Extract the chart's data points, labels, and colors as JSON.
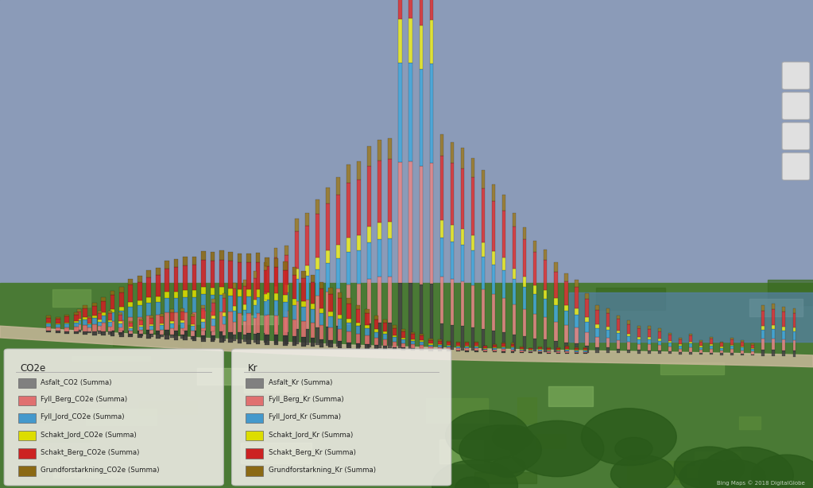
{
  "title": "",
  "legend_co2e": {
    "header": "CO2e",
    "items": [
      {
        "label": "Asfalt_CO2 (Summa)",
        "color": "#808080"
      },
      {
        "label": "Fyll_Berg_CO2e (Summa)",
        "color": "#E07070"
      },
      {
        "label": "Fyll_Jord_CO2e (Summa)",
        "color": "#4499CC"
      },
      {
        "label": "Schakt_Jord_CO2e (Summa)",
        "color": "#DDDD00"
      },
      {
        "label": "Schakt_Berg_CO2e (Summa)",
        "color": "#CC2222"
      },
      {
        "label": "Grundforstarkning_CO2e (Summa)",
        "color": "#8B6914"
      }
    ]
  },
  "legend_kr": {
    "header": "Kr",
    "items": [
      {
        "label": "Asfalt_Kr (Summa)",
        "color": "#808080"
      },
      {
        "label": "Fyll_Berg_Kr (Summa)",
        "color": "#E07070"
      },
      {
        "label": "Fyll_Jord_Kr (Summa)",
        "color": "#4499CC"
      },
      {
        "label": "Schakt_Jord_Kr (Summa)",
        "color": "#DDDD00"
      },
      {
        "label": "Schakt_Berg_Kr (Summa)",
        "color": "#CC2222"
      },
      {
        "label": "Grundforstarkning_Kr (Summa)",
        "color": "#8B6914"
      }
    ]
  },
  "sky_color": "#8899BB",
  "ground_color": "#5A8A45",
  "road_color": "#CCBBAA",
  "legend_bg": "#F0EDE8",
  "legend_alpha": 0.88,
  "n_bars": 80,
  "bar_colors": [
    "#333333",
    "#E07070",
    "#4499CC",
    "#DDDD00",
    "#CC2222",
    "#8B6914"
  ],
  "bar_colors_kr": [
    "#444444",
    "#E88888",
    "#44AADD",
    "#EEEE22",
    "#DD3333",
    "#9B7924"
  ],
  "watermark": "Bing Maps © 2018 DigitalGlobe"
}
